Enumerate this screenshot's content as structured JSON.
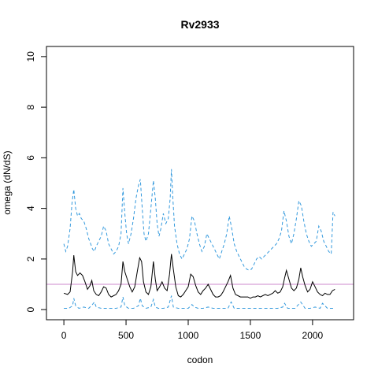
{
  "chart_data": {
    "type": "line",
    "title": "Rv2933",
    "xlabel": "codon",
    "ylabel": "omega (dN/dS)",
    "xlim": [
      -140,
      2330
    ],
    "ylim": [
      -0.4,
      10.4
    ],
    "x_ticks": [
      0,
      500,
      1000,
      1500,
      2000
    ],
    "x_tick_labels": [
      "0",
      "500",
      "1000",
      "1500",
      "2000"
    ],
    "y_ticks": [
      0,
      2,
      4,
      6,
      8,
      10
    ],
    "y_tick_labels": [
      "0",
      "2",
      "4",
      "6",
      "8",
      "10"
    ],
    "grid": false,
    "reference_line": {
      "y": 1.0,
      "color": "#cc88cc"
    },
    "colors": {
      "estimate": "#000000",
      "bounds": "#3399dd"
    },
    "series": [
      {
        "role": "estimate",
        "style": "solid",
        "x": [
          0,
          30,
          50,
          70,
          80,
          95,
          110,
          130,
          150,
          170,
          190,
          210,
          225,
          240,
          260,
          280,
          300,
          320,
          340,
          360,
          380,
          400,
          420,
          440,
          460,
          475,
          490,
          510,
          530,
          550,
          570,
          590,
          610,
          625,
          640,
          660,
          680,
          700,
          720,
          735,
          750,
          770,
          790,
          810,
          830,
          850,
          865,
          880,
          900,
          920,
          940,
          960,
          980,
          1000,
          1020,
          1040,
          1060,
          1080,
          1100,
          1120,
          1140,
          1160,
          1180,
          1200,
          1220,
          1240,
          1260,
          1280,
          1300,
          1320,
          1340,
          1360,
          1380,
          1400,
          1420,
          1440,
          1460,
          1480,
          1500,
          1520,
          1540,
          1560,
          1580,
          1600,
          1620,
          1640,
          1660,
          1680,
          1700,
          1720,
          1740,
          1760,
          1775,
          1790,
          1810,
          1830,
          1850,
          1870,
          1890,
          1905,
          1920,
          1940,
          1960,
          1980,
          2000,
          2020,
          2040,
          2060,
          2080,
          2100,
          2120,
          2140,
          2160,
          2180
        ],
        "y": [
          0.65,
          0.6,
          0.7,
          1.5,
          2.15,
          1.5,
          1.35,
          1.45,
          1.35,
          1.1,
          0.8,
          0.95,
          1.15,
          0.75,
          0.6,
          0.55,
          0.7,
          0.9,
          0.85,
          0.6,
          0.5,
          0.55,
          0.6,
          0.75,
          1.0,
          1.9,
          1.5,
          1.2,
          0.9,
          0.7,
          0.9,
          1.5,
          2.05,
          1.9,
          1.1,
          0.7,
          0.6,
          0.9,
          1.9,
          1.2,
          0.75,
          0.9,
          1.1,
          0.85,
          0.75,
          1.4,
          2.2,
          1.6,
          0.9,
          0.55,
          0.5,
          0.6,
          0.75,
          0.9,
          1.4,
          1.3,
          0.95,
          0.7,
          0.6,
          0.75,
          0.85,
          1.0,
          0.8,
          0.6,
          0.5,
          0.5,
          0.55,
          0.7,
          0.9,
          1.1,
          1.35,
          0.85,
          0.6,
          0.55,
          0.5,
          0.5,
          0.5,
          0.5,
          0.45,
          0.5,
          0.5,
          0.55,
          0.5,
          0.55,
          0.6,
          0.55,
          0.6,
          0.65,
          0.75,
          0.65,
          0.7,
          0.9,
          1.25,
          1.55,
          1.2,
          0.85,
          0.75,
          0.85,
          1.2,
          1.65,
          1.3,
          0.95,
          0.7,
          0.8,
          1.1,
          0.9,
          0.7,
          0.6,
          0.55,
          0.65,
          0.6,
          0.6,
          0.75,
          0.8
        ]
      },
      {
        "role": "upper bound",
        "style": "dashed",
        "x": [
          0,
          15,
          30,
          50,
          65,
          80,
          95,
          110,
          125,
          140,
          160,
          180,
          200,
          215,
          230,
          245,
          260,
          280,
          300,
          320,
          340,
          360,
          380,
          400,
          420,
          440,
          460,
          475,
          490,
          505,
          520,
          540,
          560,
          580,
          600,
          615,
          630,
          645,
          660,
          680,
          700,
          720,
          735,
          750,
          765,
          780,
          800,
          820,
          840,
          855,
          865,
          875,
          890,
          910,
          930,
          950,
          970,
          990,
          1010,
          1030,
          1050,
          1070,
          1090,
          1110,
          1130,
          1150,
          1170,
          1190,
          1210,
          1230,
          1250,
          1270,
          1290,
          1310,
          1330,
          1350,
          1370,
          1390,
          1410,
          1430,
          1450,
          1470,
          1490,
          1510,
          1530,
          1550,
          1570,
          1590,
          1610,
          1630,
          1650,
          1670,
          1690,
          1710,
          1730,
          1750,
          1770,
          1790,
          1810,
          1830,
          1850,
          1870,
          1890,
          1910,
          1930,
          1950,
          1970,
          1990,
          2010,
          2030,
          2050,
          2070,
          2090,
          2110,
          2130,
          2150,
          2165,
          2180
        ],
        "y": [
          2.6,
          2.3,
          2.5,
          3.2,
          4.2,
          4.75,
          4.0,
          3.7,
          3.8,
          3.6,
          3.5,
          3.2,
          2.8,
          2.6,
          2.4,
          2.3,
          2.5,
          2.7,
          2.9,
          3.3,
          3.1,
          2.6,
          2.4,
          2.2,
          2.3,
          2.5,
          3.0,
          4.8,
          3.8,
          3.0,
          2.6,
          3.0,
          3.6,
          4.4,
          4.9,
          5.15,
          4.0,
          3.0,
          2.7,
          3.0,
          4.0,
          5.1,
          4.4,
          3.4,
          2.9,
          3.2,
          3.8,
          3.4,
          3.6,
          4.4,
          5.55,
          4.5,
          3.3,
          2.6,
          2.2,
          2.0,
          2.2,
          2.4,
          2.8,
          3.7,
          3.5,
          3.0,
          2.6,
          2.3,
          2.5,
          3.0,
          2.8,
          2.6,
          2.4,
          2.2,
          2.0,
          2.3,
          2.6,
          3.0,
          3.7,
          3.2,
          2.6,
          2.3,
          2.1,
          1.9,
          1.7,
          1.6,
          1.55,
          1.6,
          1.8,
          2.0,
          2.1,
          2.0,
          2.1,
          2.2,
          2.3,
          2.4,
          2.5,
          2.6,
          2.8,
          3.1,
          3.9,
          3.5,
          2.9,
          2.6,
          3.0,
          3.6,
          4.3,
          4.1,
          3.5,
          3.0,
          2.7,
          2.5,
          2.6,
          2.7,
          3.3,
          3.1,
          2.7,
          2.5,
          2.3,
          2.2,
          3.85,
          3.7
        ]
      },
      {
        "role": "lower bound",
        "style": "dashed",
        "x": [
          0,
          40,
          70,
          80,
          95,
          120,
          160,
          200,
          230,
          245,
          260,
          300,
          340,
          380,
          420,
          460,
          475,
          490,
          520,
          560,
          600,
          615,
          630,
          660,
          700,
          720,
          735,
          760,
          800,
          840,
          865,
          880,
          920,
          960,
          1000,
          1030,
          1050,
          1080,
          1120,
          1160,
          1200,
          1240,
          1280,
          1320,
          1345,
          1370,
          1420,
          1480,
          1540,
          1600,
          1660,
          1720,
          1760,
          1775,
          1800,
          1860,
          1905,
          1940,
          1980,
          2020,
          2060,
          2080,
          2120,
          2180
        ],
        "y": [
          0.05,
          0.05,
          0.15,
          0.45,
          0.15,
          0.05,
          0.1,
          0.05,
          0.2,
          0.3,
          0.1,
          0.05,
          0.05,
          0.05,
          0.05,
          0.1,
          0.5,
          0.15,
          0.05,
          0.05,
          0.15,
          0.45,
          0.15,
          0.05,
          0.1,
          0.4,
          0.1,
          0.05,
          0.05,
          0.1,
          0.55,
          0.1,
          0.05,
          0.05,
          0.05,
          0.2,
          0.1,
          0.05,
          0.05,
          0.1,
          0.05,
          0.05,
          0.05,
          0.05,
          0.3,
          0.05,
          0.05,
          0.05,
          0.05,
          0.05,
          0.05,
          0.05,
          0.1,
          0.25,
          0.05,
          0.05,
          0.3,
          0.05,
          0.05,
          0.1,
          0.05,
          0.25,
          0.05,
          0.05
        ]
      }
    ]
  }
}
